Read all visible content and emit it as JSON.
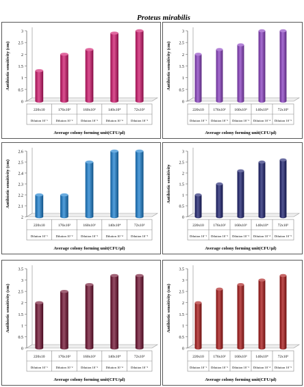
{
  "figure": {
    "title": "Proteus mirabilis"
  },
  "colors": {
    "pink": "#d0166c",
    "purple": "#8a3fc2",
    "blue": "#1a7fd0",
    "navy": "#1a1f6e",
    "maroon": "#701030",
    "red": "#a81515"
  },
  "chart_data": [
    {
      "type": "bar",
      "ylabel": "Antibiotic sensitivity (cm)",
      "xlabel": "Average colony forming unit(CFU/µl)",
      "ylim": [
        0,
        3
      ],
      "yticks": [
        "0",
        "0.5",
        "1",
        "1.5",
        "2",
        "2.5",
        "3"
      ],
      "categories": [
        "220x10",
        "176x10²",
        "160x10³",
        "140x10⁴",
        "72x10⁵"
      ],
      "dilutions": [
        "Dilution 10⁻¹",
        "Dilution 10⁻²",
        "Dilution 10⁻³",
        "Dilution 10⁻⁴",
        "Dilution 10⁻⁵"
      ],
      "values": [
        1.3,
        2.0,
        2.2,
        2.9,
        3.0
      ],
      "color": "pink"
    },
    {
      "type": "bar",
      "ylabel": "Antibiotic sensitivity (cm)",
      "xlabel": "Average colony forming unit(CFU/µl)",
      "ylim": [
        0,
        3
      ],
      "yticks": [
        "0",
        "0.5",
        "1",
        "1.5",
        "2",
        "2.5",
        "3"
      ],
      "categories": [
        "220x10",
        "176x10²",
        "160x10³",
        "140x10⁴",
        "72x10⁵"
      ],
      "dilutions": [
        "Dilution 10⁻¹",
        "Dilution 10⁻²",
        "Dilution 10⁻³",
        "Dilution 10⁻⁴",
        "Dilution 10⁻⁵"
      ],
      "values": [
        2.0,
        2.2,
        2.4,
        3.0,
        3.0
      ],
      "color": "purple"
    },
    {
      "type": "bar",
      "ylabel": "Antibiotic sensitivity (cm)",
      "xlabel": "Average colony forming unit(CFU/µl)",
      "ylim": [
        2,
        2.6
      ],
      "yticks": [
        "2",
        "2.1",
        "2.2",
        "2.3",
        "2.4",
        "2.5",
        "2.6"
      ],
      "categories": [
        "220x10",
        "176x10²",
        "160x10³",
        "140x10⁴",
        "72x10⁵"
      ],
      "dilutions": [
        "Dilution 10⁻¹",
        "Dilution 10⁻²",
        "Dilution 10⁻³",
        "Dilution 10⁻⁴",
        "Dilution 10⁻⁵"
      ],
      "values": [
        2.2,
        2.2,
        2.5,
        2.6,
        2.6
      ],
      "color": "blue"
    },
    {
      "type": "bar",
      "ylabel": "Antibiotic sensitivity",
      "xlabel": "Average colony forming unit(CFU/µl)",
      "ylim": [
        0,
        3
      ],
      "yticks": [
        "0",
        "0.5",
        "1",
        "1.5",
        "2",
        "2.5",
        "3"
      ],
      "categories": [
        "220x10",
        "176x10²",
        "160x10³",
        "140x10⁴",
        "72x10⁵"
      ],
      "dilutions": [
        "Dilution 10⁻¹",
        "Dilution 10⁻²",
        "Dilution 10⁻³",
        "Dilution 10⁻⁴",
        "Dilution 10⁻⁵"
      ],
      "values": [
        1.0,
        1.5,
        2.1,
        2.5,
        2.6
      ],
      "color": "navy"
    },
    {
      "type": "bar",
      "ylabel": "Antibiotic sensitivity (cm)",
      "xlabel": "Average colony forming unit(CFU/µl)",
      "ylim": [
        0,
        3.5
      ],
      "yticks": [
        "0",
        "0.5",
        "1",
        "1.5",
        "2",
        "2.5",
        "3",
        "3.5"
      ],
      "categories": [
        "220x10",
        "176x10²",
        "160x10³",
        "140x10⁴",
        "72x10⁵"
      ],
      "dilutions": [
        "Dilution 10⁻¹",
        "Dilution 10⁻²",
        "Dilution 10⁻³",
        "Dilution 10⁻⁴",
        "Dilution 10⁻⁵"
      ],
      "values": [
        2.0,
        2.5,
        2.8,
        3.2,
        3.2
      ],
      "color": "maroon"
    },
    {
      "type": "bar",
      "ylabel": "Antibiotic sensitivity (cm)",
      "xlabel": "Average colony forming unit(CFU/µl)",
      "ylim": [
        0,
        3.5
      ],
      "yticks": [
        "0",
        "0.5",
        "1",
        "1.5",
        "2",
        "2.5",
        "3",
        "3.5"
      ],
      "categories": [
        "220x10",
        "176x10²",
        "160x10³",
        "140x10⁴",
        "72x10⁵"
      ],
      "dilutions": [
        "Dilution 10⁻¹",
        "Dilution 10⁻²",
        "Dilution 10⁻³",
        "Dilution 10⁻⁴",
        "Dilution 10⁻⁵"
      ],
      "values": [
        2.0,
        2.6,
        2.8,
        3.0,
        3.2
      ],
      "color": "red"
    }
  ]
}
